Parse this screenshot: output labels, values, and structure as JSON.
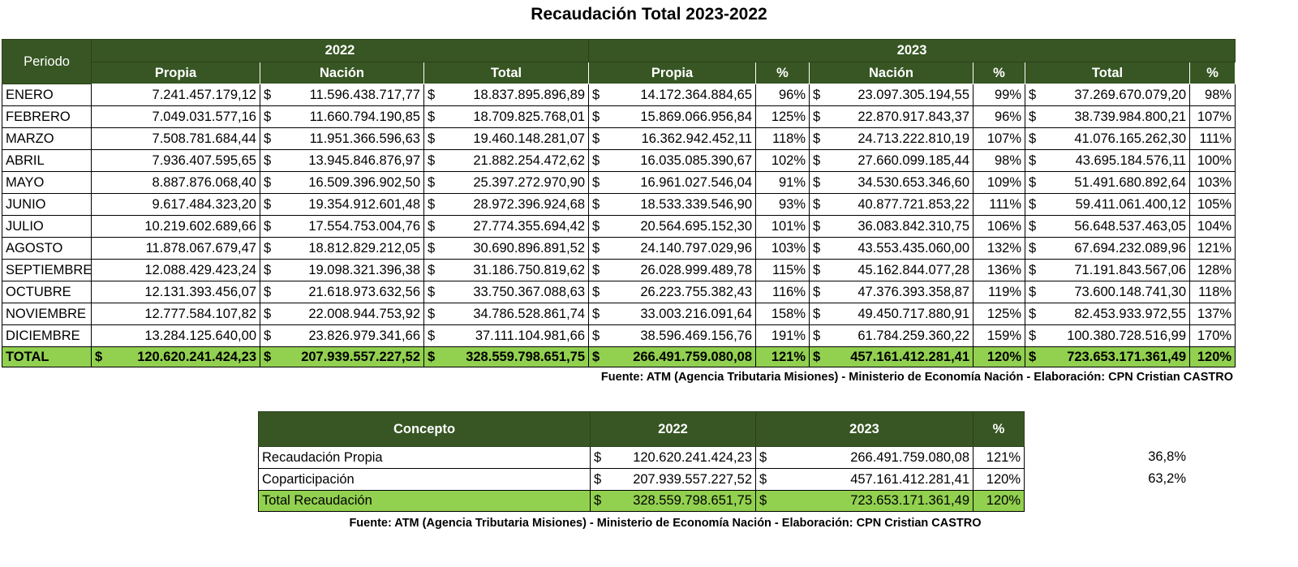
{
  "title": "Recaudación Total 2023-2022",
  "currency": "$",
  "main_table": {
    "header": {
      "period": "Periodo",
      "years": [
        "2022",
        "2023"
      ],
      "columns": [
        "Propia",
        "Nación",
        "Total",
        "Propia",
        "%",
        "Nación",
        "%",
        "Total",
        "%"
      ]
    },
    "rows": [
      [
        "ENERO",
        "7.241.457.179,12",
        "11.596.438.717,77",
        "18.837.895.896,89",
        "14.172.364.884,65",
        "96%",
        "23.097.305.194,55",
        "99%",
        "37.269.670.079,20",
        "98%"
      ],
      [
        "FEBRERO",
        "7.049.031.577,16",
        "11.660.794.190,85",
        "18.709.825.768,01",
        "15.869.066.956,84",
        "125%",
        "22.870.917.843,37",
        "96%",
        "38.739.984.800,21",
        "107%"
      ],
      [
        "MARZO",
        "7.508.781.684,44",
        "11.951.366.596,63",
        "19.460.148.281,07",
        "16.362.942.452,11",
        "118%",
        "24.713.222.810,19",
        "107%",
        "41.076.165.262,30",
        "111%"
      ],
      [
        "ABRIL",
        "7.936.407.595,65",
        "13.945.846.876,97",
        "21.882.254.472,62",
        "16.035.085.390,67",
        "102%",
        "27.660.099.185,44",
        "98%",
        "43.695.184.576,11",
        "100%"
      ],
      [
        "MAYO",
        "8.887.876.068,40",
        "16.509.396.902,50",
        "25.397.272.970,90",
        "16.961.027.546,04",
        "91%",
        "34.530.653.346,60",
        "109%",
        "51.491.680.892,64",
        "103%"
      ],
      [
        "JUNIO",
        "9.617.484.323,20",
        "19.354.912.601,48",
        "28.972.396.924,68",
        "18.533.339.546,90",
        "93%",
        "40.877.721.853,22",
        "111%",
        "59.411.061.400,12",
        "105%"
      ],
      [
        "JULIO",
        "10.219.602.689,66",
        "17.554.753.004,76",
        "27.774.355.694,42",
        "20.564.695.152,30",
        "101%",
        "36.083.842.310,75",
        "106%",
        "56.648.537.463,05",
        "104%"
      ],
      [
        "AGOSTO",
        "11.878.067.679,47",
        "18.812.829.212,05",
        "30.690.896.891,52",
        "24.140.797.029,96",
        "103%",
        "43.553.435.060,00",
        "132%",
        "67.694.232.089,96",
        "121%"
      ],
      [
        "SEPTIEMBRE",
        "12.088.429.423,24",
        "19.098.321.396,38",
        "31.186.750.819,62",
        "26.028.999.489,78",
        "115%",
        "45.162.844.077,28",
        "136%",
        "71.191.843.567,06",
        "128%"
      ],
      [
        "OCTUBRE",
        "12.131.393.456,07",
        "21.618.973.632,56",
        "33.750.367.088,63",
        "26.223.755.382,43",
        "116%",
        "47.376.393.358,87",
        "119%",
        "73.600.148.741,30",
        "118%"
      ],
      [
        "NOVIEMBRE",
        "12.777.584.107,82",
        "22.008.944.753,92",
        "34.786.528.861,74",
        "33.003.216.091,64",
        "158%",
        "49.450.717.880,91",
        "125%",
        "82.453.933.972,55",
        "137%"
      ],
      [
        "DICIEMBRE",
        "13.284.125.640,00",
        "23.826.979.341,66",
        "37.111.104.981,66",
        "38.596.469.156,76",
        "191%",
        "61.784.259.360,22",
        "159%",
        "100.380.728.516,99",
        "170%"
      ]
    ],
    "total": [
      "TOTAL",
      "120.620.241.424,23",
      "207.939.557.227,52",
      "328.559.798.651,75",
      "266.491.759.080,08",
      "121%",
      "457.161.412.281,41",
      "120%",
      "723.653.171.361,49",
      "120%"
    ]
  },
  "sources": [
    "Fuente: ATM (Agencia Tributaria Misiones) - Ministerio de Economía Nación - Elaboración: CPN Cristian CASTRO",
    "Fuente: ATM (Agencia Tributaria Misiones) - Ministerio de Economía Nación - Elaboración: CPN Cristian CASTRO"
  ],
  "summary_table": {
    "header": [
      "Concepto",
      "2022",
      "2023",
      "%"
    ],
    "rows": [
      [
        "Recaudación Propia",
        "120.620.241.424,23",
        "266.491.759.080,08",
        "121%"
      ],
      [
        "Coparticipación",
        "207.939.557.227,52",
        "457.161.412.281,41",
        "120%"
      ]
    ],
    "total": [
      "Total Recaudación",
      "328.559.798.651,75",
      "723.653.171.361,49",
      "120%"
    ],
    "shares": [
      "36,8%",
      "63,2%"
    ]
  }
}
